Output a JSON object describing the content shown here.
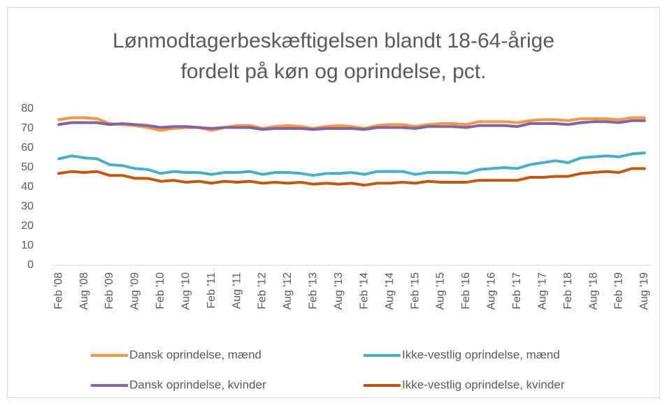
{
  "chart_data": {
    "type": "line",
    "title": [
      "Lønmodtagerbeskæftigelsen blandt 18-64-årige",
      "fordelt på køn og oprindelse, pct."
    ],
    "categories": [
      "Feb '08",
      null,
      "Aug '08",
      null,
      "Feb '09",
      null,
      "Aug '09",
      null,
      "Feb '10",
      null,
      "Aug '10",
      null,
      "Feb '11",
      null,
      "Aug '11",
      null,
      "Feb '12",
      null,
      "Aug '12",
      null,
      "Feb '13",
      null,
      "Aug '13",
      null,
      "Feb '14",
      null,
      "Aug '14",
      null,
      "Feb '15",
      null,
      "Aug '15",
      null,
      "Feb '16",
      null,
      "Aug '16",
      null,
      "Feb '17",
      null,
      "Aug '17",
      null,
      "Feb '18",
      null,
      "Aug '18",
      null,
      "Feb '19",
      null,
      "Aug '19"
    ],
    "series": [
      {
        "name": "Dansk oprindelse, mænd",
        "color": "#f79646",
        "values": [
          74.5,
          75.5,
          75.5,
          75,
          72.5,
          72,
          71.5,
          70.5,
          69,
          70,
          70.5,
          70.5,
          69,
          70.5,
          71.5,
          71.5,
          70,
          71,
          71.5,
          71,
          70,
          71,
          71.5,
          71,
          70,
          71.5,
          72,
          72,
          71,
          72,
          72.5,
          72.5,
          72,
          73.5,
          73.5,
          73.5,
          73,
          74,
          74.5,
          74.5,
          74,
          75,
          75,
          75,
          74.5,
          75.5,
          75.5
        ]
      },
      {
        "name": "Ikke-vestlig oprindelse, mænd",
        "color": "#4bacc6",
        "values": [
          54.5,
          56,
          55,
          54.5,
          51.5,
          51,
          49.5,
          49,
          47,
          48,
          47.5,
          47.5,
          46.5,
          47.5,
          47.5,
          48,
          46.5,
          47.5,
          47.5,
          47,
          46,
          47,
          47,
          47.5,
          46.5,
          48,
          48,
          48,
          46.5,
          47.5,
          47.5,
          47.5,
          47,
          49,
          49.5,
          50,
          49.5,
          51.5,
          52.5,
          53.5,
          52.5,
          55,
          55.5,
          56,
          55.5,
          57,
          57.5
        ]
      },
      {
        "name": "Dansk oprindelse, kvinder",
        "color": "#8064a2",
        "values": [
          72,
          73,
          73,
          73,
          72,
          72.5,
          72,
          71.5,
          70.5,
          71,
          71,
          70.5,
          70,
          70.5,
          70.5,
          70.5,
          69.5,
          70,
          70,
          70,
          69.5,
          70,
          70,
          70,
          69.5,
          70.5,
          70.5,
          70.5,
          70,
          71,
          71,
          71,
          70.5,
          71.5,
          71.5,
          71.5,
          71,
          72.5,
          72.5,
          72.5,
          72,
          73,
          73.5,
          73.5,
          73,
          74,
          74
        ]
      },
      {
        "name": "Ikke-vestlig oprindelse, kvinder",
        "color": "#c0590f",
        "values": [
          47,
          48,
          47.5,
          48,
          46,
          46,
          44.5,
          44.5,
          43,
          43.5,
          42.5,
          43,
          42,
          43,
          42.5,
          43,
          42,
          42.5,
          42,
          42.5,
          41.5,
          42,
          41.5,
          42,
          41,
          42,
          42,
          42.5,
          42,
          43,
          42.5,
          42.5,
          42.5,
          43.5,
          43.5,
          43.5,
          43.5,
          45,
          45,
          45.5,
          45.5,
          47,
          47.5,
          48,
          47.5,
          49.5,
          49.5
        ]
      }
    ],
    "ylim": [
      0,
      80
    ],
    "yticks": [
      0,
      10,
      20,
      30,
      40,
      50,
      60,
      70,
      80
    ],
    "grid": false
  }
}
